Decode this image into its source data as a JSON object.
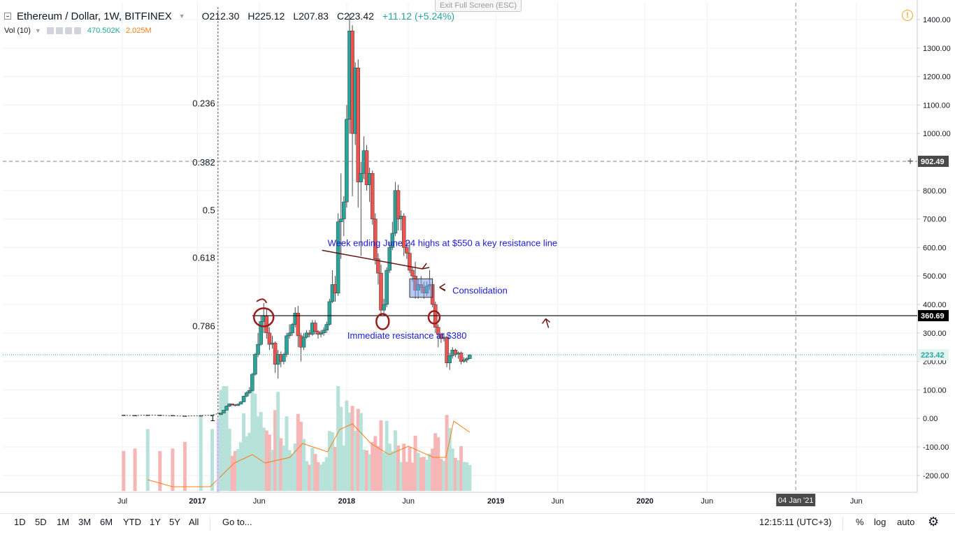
{
  "header": {
    "symbol": "Ethereum / Dollar, 1W, BITFINEX",
    "open_label": "O",
    "open": "212.30",
    "high_label": "H",
    "high": "225.12",
    "low_label": "L",
    "low": "207.83",
    "close_label": "C",
    "close": "223.42",
    "change": "+11.12 (+5.24%)",
    "exit_fullscreen": "Exit Full Screen (ESC)"
  },
  "volume_legend": {
    "label": "Vol (10)",
    "value": "470.502K",
    "ma_value": "2.025M"
  },
  "toolbar": {
    "timeframes": [
      "1D",
      "5D",
      "1M",
      "3M",
      "6M",
      "YTD",
      "1Y",
      "5Y",
      "All"
    ],
    "goto": "Go to...",
    "clock": "12:15:11 (UTC+3)",
    "percent": "%",
    "log": "log",
    "auto": "auto"
  },
  "colors": {
    "up": "#26a69a",
    "down": "#ef5350",
    "vol_up": "#b6e2d9",
    "vol_down": "#f7b6b6",
    "vol_ma": "#f57f17",
    "annotation_text": "#1a1ad6",
    "annotation_ink": "#6b1414",
    "marker": "#9b1c1c",
    "fib": "#8c8c8c",
    "consolidation": "#7a9ee6"
  },
  "chart_data": {
    "type": "candlestick",
    "title": "Ethereum / Dollar, 1W, BITFINEX",
    "yaxis_ticks": [
      1400,
      1300,
      1200,
      1100,
      1000,
      900,
      800,
      700,
      600,
      500,
      400,
      300,
      200,
      100,
      0,
      -100,
      -200
    ],
    "yaxis_tick_labels": [
      "1400.00",
      "1300.00",
      "1200.00",
      "1100.00",
      "1000.00",
      "",
      "800.00",
      "700.00",
      "600.00",
      "500.00",
      "400.00",
      "300.00",
      "200.00",
      "100.00",
      "0.00",
      "-100.00",
      "-200.00"
    ],
    "ylim": [
      -260,
      1450
    ],
    "x_tick_labels": [
      {
        "label": "Jul",
        "date": "2016-07-01"
      },
      {
        "label": "2017",
        "date": "2017-01-01"
      },
      {
        "label": "Jun",
        "date": "2017-06-01"
      },
      {
        "label": "2018",
        "date": "2018-01-01"
      },
      {
        "label": "Jun",
        "date": "2018-06-01"
      },
      {
        "label": "2019",
        "date": "2019-01-01"
      },
      {
        "label": "Jun",
        "date": "2019-06-01"
      },
      {
        "label": "2020",
        "date": "2020-01-01"
      },
      {
        "label": "Jun",
        "date": "2020-06-01"
      },
      {
        "label": "Jun",
        "date": "2021-06-01"
      }
    ],
    "crosshair": {
      "x_label": "04 Jan '21",
      "y_label": "902.49",
      "y_value": 902.49
    },
    "last_price": 223.42,
    "resistance_level": {
      "value": 360.69,
      "label": "360.69",
      "start_date": "2017-05-15"
    },
    "fibonacci": [
      {
        "ratio": "0.236",
        "price": 1105
      },
      {
        "ratio": "0.382",
        "price": 898
      },
      {
        "ratio": "0.5",
        "price": 730
      },
      {
        "ratio": "0.618",
        "price": 563
      },
      {
        "ratio": "0.786",
        "price": 323
      },
      {
        "ratio": "1",
        "price": 0
      }
    ],
    "fib_anchor_date": "2017-02-20",
    "candles": [
      {
        "d": "2016-07-04",
        "o": 12,
        "h": 13,
        "l": 11,
        "c": 11
      },
      {
        "d": "2016-08-01",
        "o": 11,
        "h": 12,
        "l": 10,
        "c": 10
      },
      {
        "d": "2016-09-01",
        "o": 10,
        "h": 13,
        "l": 10,
        "c": 12
      },
      {
        "d": "2016-10-01",
        "o": 12,
        "h": 13,
        "l": 11,
        "c": 11
      },
      {
        "d": "2016-11-01",
        "o": 11,
        "h": 11,
        "l": 9,
        "c": 9
      },
      {
        "d": "2016-12-01",
        "o": 9,
        "h": 9,
        "l": 7,
        "c": 8
      },
      {
        "d": "2017-01-09",
        "o": 8,
        "h": 11,
        "l": 8,
        "c": 10
      },
      {
        "d": "2017-02-06",
        "o": 10,
        "h": 13,
        "l": 10,
        "c": 12
      },
      {
        "d": "2017-02-27",
        "o": 13,
        "h": 20,
        "l": 13,
        "c": 19
      },
      {
        "d": "2017-03-06",
        "o": 19,
        "h": 30,
        "l": 18,
        "c": 29
      },
      {
        "d": "2017-03-13",
        "o": 29,
        "h": 45,
        "l": 28,
        "c": 43
      },
      {
        "d": "2017-03-20",
        "o": 43,
        "h": 53,
        "l": 40,
        "c": 51
      },
      {
        "d": "2017-03-27",
        "o": 51,
        "h": 52,
        "l": 45,
        "c": 48
      },
      {
        "d": "2017-04-03",
        "o": 48,
        "h": 50,
        "l": 42,
        "c": 45
      },
      {
        "d": "2017-04-10",
        "o": 45,
        "h": 52,
        "l": 44,
        "c": 50
      },
      {
        "d": "2017-04-17",
        "o": 50,
        "h": 60,
        "l": 49,
        "c": 58
      },
      {
        "d": "2017-04-24",
        "o": 58,
        "h": 80,
        "l": 57,
        "c": 78
      },
      {
        "d": "2017-05-01",
        "o": 78,
        "h": 95,
        "l": 75,
        "c": 90
      },
      {
        "d": "2017-05-08",
        "o": 90,
        "h": 110,
        "l": 85,
        "c": 98
      },
      {
        "d": "2017-05-15",
        "o": 98,
        "h": 160,
        "l": 95,
        "c": 155
      },
      {
        "d": "2017-05-22",
        "o": 155,
        "h": 230,
        "l": 150,
        "c": 225
      },
      {
        "d": "2017-05-29",
        "o": 225,
        "h": 300,
        "l": 215,
        "c": 260
      },
      {
        "d": "2017-06-05",
        "o": 260,
        "h": 360,
        "l": 255,
        "c": 340
      },
      {
        "d": "2017-06-12",
        "o": 340,
        "h": 405,
        "l": 300,
        "c": 360
      },
      {
        "d": "2017-06-19",
        "o": 360,
        "h": 385,
        "l": 280,
        "c": 300
      },
      {
        "d": "2017-06-26",
        "o": 300,
        "h": 320,
        "l": 240,
        "c": 260
      },
      {
        "d": "2017-07-03",
        "o": 260,
        "h": 290,
        "l": 245,
        "c": 265
      },
      {
        "d": "2017-07-10",
        "o": 265,
        "h": 270,
        "l": 160,
        "c": 190
      },
      {
        "d": "2017-07-17",
        "o": 190,
        "h": 240,
        "l": 140,
        "c": 225
      },
      {
        "d": "2017-07-24",
        "o": 225,
        "h": 235,
        "l": 180,
        "c": 200
      },
      {
        "d": "2017-07-31",
        "o": 200,
        "h": 230,
        "l": 190,
        "c": 225
      },
      {
        "d": "2017-08-07",
        "o": 225,
        "h": 300,
        "l": 215,
        "c": 290
      },
      {
        "d": "2017-08-14",
        "o": 290,
        "h": 330,
        "l": 280,
        "c": 300
      },
      {
        "d": "2017-08-21",
        "o": 300,
        "h": 335,
        "l": 290,
        "c": 330
      },
      {
        "d": "2017-08-28",
        "o": 330,
        "h": 390,
        "l": 320,
        "c": 370
      },
      {
        "d": "2017-09-04",
        "o": 370,
        "h": 395,
        "l": 250,
        "c": 290
      },
      {
        "d": "2017-09-11",
        "o": 290,
        "h": 300,
        "l": 200,
        "c": 250
      },
      {
        "d": "2017-09-18",
        "o": 250,
        "h": 300,
        "l": 240,
        "c": 285
      },
      {
        "d": "2017-09-25",
        "o": 285,
        "h": 310,
        "l": 280,
        "c": 300
      },
      {
        "d": "2017-10-02",
        "o": 300,
        "h": 310,
        "l": 285,
        "c": 295
      },
      {
        "d": "2017-10-09",
        "o": 295,
        "h": 345,
        "l": 290,
        "c": 335
      },
      {
        "d": "2017-10-16",
        "o": 335,
        "h": 345,
        "l": 295,
        "c": 305
      },
      {
        "d": "2017-10-23",
        "o": 305,
        "h": 310,
        "l": 280,
        "c": 295
      },
      {
        "d": "2017-10-30",
        "o": 295,
        "h": 310,
        "l": 285,
        "c": 300
      },
      {
        "d": "2017-11-06",
        "o": 300,
        "h": 320,
        "l": 290,
        "c": 310
      },
      {
        "d": "2017-11-13",
        "o": 310,
        "h": 340,
        "l": 300,
        "c": 330
      },
      {
        "d": "2017-11-20",
        "o": 330,
        "h": 420,
        "l": 325,
        "c": 410
      },
      {
        "d": "2017-11-27",
        "o": 410,
        "h": 520,
        "l": 405,
        "c": 470
      },
      {
        "d": "2017-12-04",
        "o": 470,
        "h": 500,
        "l": 410,
        "c": 440
      },
      {
        "d": "2017-12-11",
        "o": 440,
        "h": 720,
        "l": 430,
        "c": 690
      },
      {
        "d": "2017-12-18",
        "o": 690,
        "h": 860,
        "l": 560,
        "c": 700
      },
      {
        "d": "2017-12-25",
        "o": 700,
        "h": 780,
        "l": 640,
        "c": 760
      },
      {
        "d": "2018-01-01",
        "o": 760,
        "h": 1100,
        "l": 740,
        "c": 1050
      },
      {
        "d": "2018-01-08",
        "o": 1050,
        "h": 1420,
        "l": 1000,
        "c": 1360
      },
      {
        "d": "2018-01-15",
        "o": 1360,
        "h": 1380,
        "l": 780,
        "c": 1000
      },
      {
        "d": "2018-01-22",
        "o": 1000,
        "h": 1250,
        "l": 960,
        "c": 1230
      },
      {
        "d": "2018-01-29",
        "o": 1230,
        "h": 1260,
        "l": 740,
        "c": 830
      },
      {
        "d": "2018-02-05",
        "o": 830,
        "h": 900,
        "l": 570,
        "c": 860
      },
      {
        "d": "2018-02-12",
        "o": 860,
        "h": 990,
        "l": 840,
        "c": 940
      },
      {
        "d": "2018-02-19",
        "o": 940,
        "h": 960,
        "l": 800,
        "c": 820
      },
      {
        "d": "2018-02-26",
        "o": 820,
        "h": 880,
        "l": 760,
        "c": 860
      },
      {
        "d": "2018-03-05",
        "o": 860,
        "h": 870,
        "l": 680,
        "c": 700
      },
      {
        "d": "2018-03-12",
        "o": 700,
        "h": 720,
        "l": 540,
        "c": 560
      },
      {
        "d": "2018-03-19",
        "o": 560,
        "h": 580,
        "l": 470,
        "c": 510
      },
      {
        "d": "2018-03-26",
        "o": 510,
        "h": 540,
        "l": 360,
        "c": 380
      },
      {
        "d": "2018-04-02",
        "o": 380,
        "h": 420,
        "l": 360,
        "c": 400
      },
      {
        "d": "2018-04-09",
        "o": 400,
        "h": 530,
        "l": 390,
        "c": 520
      },
      {
        "d": "2018-04-16",
        "o": 520,
        "h": 620,
        "l": 510,
        "c": 600
      },
      {
        "d": "2018-04-23",
        "o": 600,
        "h": 690,
        "l": 590,
        "c": 650
      },
      {
        "d": "2018-04-30",
        "o": 650,
        "h": 830,
        "l": 640,
        "c": 800
      },
      {
        "d": "2018-05-07",
        "o": 800,
        "h": 820,
        "l": 660,
        "c": 700
      },
      {
        "d": "2018-05-14",
        "o": 700,
        "h": 730,
        "l": 660,
        "c": 710
      },
      {
        "d": "2018-05-21",
        "o": 710,
        "h": 720,
        "l": 570,
        "c": 600
      },
      {
        "d": "2018-05-28",
        "o": 600,
        "h": 620,
        "l": 560,
        "c": 580
      },
      {
        "d": "2018-06-04",
        "o": 580,
        "h": 620,
        "l": 510,
        "c": 520
      },
      {
        "d": "2018-06-11",
        "o": 520,
        "h": 530,
        "l": 480,
        "c": 500
      },
      {
        "d": "2018-06-18",
        "o": 500,
        "h": 550,
        "l": 420,
        "c": 450
      },
      {
        "d": "2018-06-25",
        "o": 450,
        "h": 490,
        "l": 420,
        "c": 470
      },
      {
        "d": "2018-07-02",
        "o": 470,
        "h": 500,
        "l": 440,
        "c": 460
      },
      {
        "d": "2018-07-09",
        "o": 460,
        "h": 480,
        "l": 420,
        "c": 440
      },
      {
        "d": "2018-07-16",
        "o": 440,
        "h": 480,
        "l": 430,
        "c": 465
      },
      {
        "d": "2018-07-23",
        "o": 465,
        "h": 520,
        "l": 450,
        "c": 470
      },
      {
        "d": "2018-07-30",
        "o": 470,
        "h": 475,
        "l": 390,
        "c": 400
      },
      {
        "d": "2018-08-06",
        "o": 400,
        "h": 410,
        "l": 300,
        "c": 320
      },
      {
        "d": "2018-08-13",
        "o": 320,
        "h": 330,
        "l": 250,
        "c": 295
      },
      {
        "d": "2018-08-20",
        "o": 295,
        "h": 300,
        "l": 265,
        "c": 280
      },
      {
        "d": "2018-08-27",
        "o": 280,
        "h": 300,
        "l": 270,
        "c": 285
      },
      {
        "d": "2018-09-03",
        "o": 285,
        "h": 290,
        "l": 180,
        "c": 195
      },
      {
        "d": "2018-09-10",
        "o": 195,
        "h": 230,
        "l": 170,
        "c": 220
      },
      {
        "d": "2018-09-17",
        "o": 220,
        "h": 250,
        "l": 210,
        "c": 240
      },
      {
        "d": "2018-09-24",
        "o": 240,
        "h": 245,
        "l": 215,
        "c": 225
      },
      {
        "d": "2018-10-01",
        "o": 225,
        "h": 235,
        "l": 210,
        "c": 230
      },
      {
        "d": "2018-10-08",
        "o": 230,
        "h": 235,
        "l": 190,
        "c": 200
      },
      {
        "d": "2018-10-15",
        "o": 200,
        "h": 215,
        "l": 195,
        "c": 205
      },
      {
        "d": "2018-10-22",
        "o": 205,
        "h": 215,
        "l": 195,
        "c": 210
      },
      {
        "d": "2018-10-29",
        "o": 210,
        "h": 225,
        "l": 208,
        "c": 223
      }
    ],
    "volume_ma": [
      {
        "d": "2016-09-01",
        "v": 40
      },
      {
        "d": "2016-11-01",
        "v": 15
      },
      {
        "d": "2017-02-01",
        "v": 15
      },
      {
        "d": "2017-04-01",
        "v": 100
      },
      {
        "d": "2017-05-15",
        "v": 130
      },
      {
        "d": "2017-06-15",
        "v": 100
      },
      {
        "d": "2017-08-15",
        "v": 120
      },
      {
        "d": "2017-09-15",
        "v": 170
      },
      {
        "d": "2017-11-15",
        "v": 140
      },
      {
        "d": "2017-12-15",
        "v": 220
      },
      {
        "d": "2018-01-15",
        "v": 240
      },
      {
        "d": "2018-03-01",
        "v": 170
      },
      {
        "d": "2018-04-15",
        "v": 130
      },
      {
        "d": "2018-06-01",
        "v": 160
      },
      {
        "d": "2018-08-01",
        "v": 120
      },
      {
        "d": "2018-09-01",
        "v": 120
      },
      {
        "d": "2018-09-20",
        "v": 250
      },
      {
        "d": "2018-10-29",
        "v": 210
      }
    ]
  },
  "annotations": [
    {
      "text": "Week ending June 24 highs at $550 a key resistance line",
      "price": 605,
      "date": "2018-11-01"
    },
    {
      "text": "Consolidation",
      "price": 450,
      "date": "2018-08-10"
    },
    {
      "text": "Immediate resistance at $380",
      "price": 290,
      "date": "2019-03-15"
    }
  ]
}
